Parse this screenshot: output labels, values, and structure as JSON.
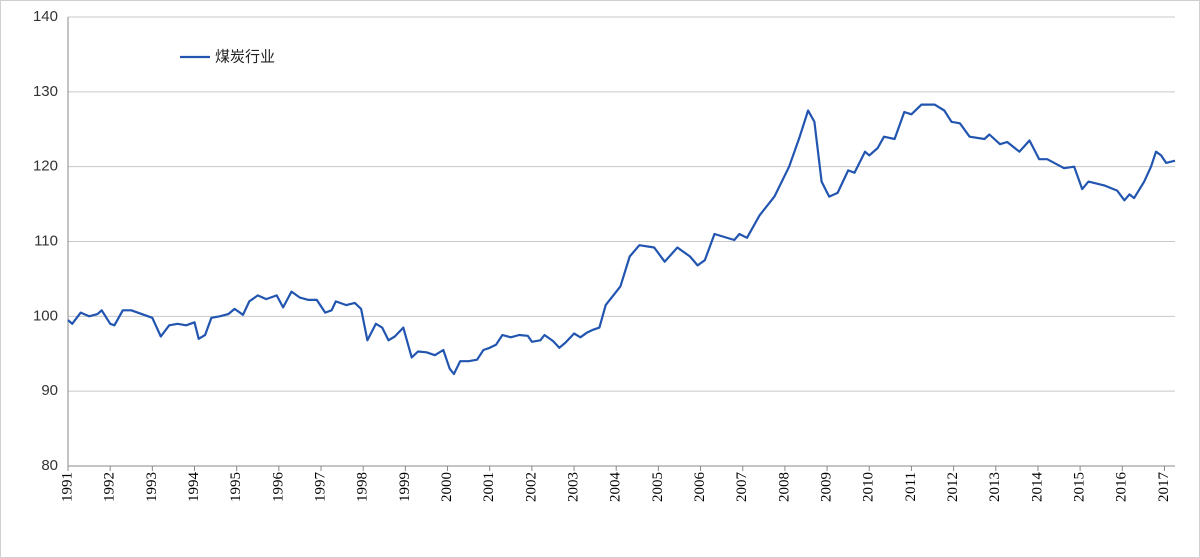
{
  "chart_data": {
    "type": "line",
    "x": [
      1991.0,
      1991.1,
      1991.3,
      1991.5,
      1991.7,
      1991.8,
      1992.0,
      1992.1,
      1992.3,
      1992.5,
      1992.8,
      1993.0,
      1993.2,
      1993.4,
      1993.6,
      1993.8,
      1994.0,
      1994.1,
      1994.25,
      1994.4,
      1994.6,
      1994.8,
      1994.95,
      1995.15,
      1995.3,
      1995.5,
      1995.7,
      1995.95,
      1996.1,
      1996.3,
      1996.5,
      1996.7,
      1996.9,
      1997.1,
      1997.25,
      1997.35,
      1997.6,
      1997.8,
      1997.95,
      1998.1,
      1998.3,
      1998.45,
      1998.6,
      1998.75,
      1998.95,
      1999.15,
      1999.3,
      1999.5,
      1999.7,
      1999.9,
      2000.05,
      2000.15,
      2000.3,
      2000.5,
      2000.7,
      2000.85,
      2001.0,
      2001.15,
      2001.3,
      2001.5,
      2001.7,
      2001.9,
      2002.0,
      2002.2,
      2002.3,
      2002.5,
      2002.65,
      2002.8,
      2003.0,
      2003.15,
      2003.3,
      2003.45,
      2003.6,
      2003.75,
      2004.1,
      2004.32,
      2004.55,
      2004.9,
      2005.15,
      2005.45,
      2005.75,
      2005.93,
      2006.1,
      2006.33,
      2006.8,
      2006.92,
      2007.1,
      2007.4,
      2007.75,
      2008.1,
      2008.35,
      2008.55,
      2008.7,
      2008.87,
      2009.05,
      2009.25,
      2009.5,
      2009.65,
      2009.9,
      2010.0,
      2010.2,
      2010.35,
      2010.6,
      2010.83,
      2011.0,
      2011.24,
      2011.55,
      2011.78,
      2011.95,
      2012.15,
      2012.38,
      2012.73,
      2012.85,
      2013.1,
      2013.27,
      2013.56,
      2013.8,
      2014.03,
      2014.22,
      2014.62,
      2014.86,
      2015.05,
      2015.2,
      2015.57,
      2015.88,
      2016.05,
      2016.17,
      2016.28,
      2016.52,
      2016.68,
      2016.8,
      2016.92,
      2017.04,
      2017.25
    ],
    "series": [
      {
        "name": "煤炭行业",
        "color": "#2255b0",
        "values": [
          99.5,
          99.0,
          100.5,
          100.0,
          100.3,
          100.8,
          99.0,
          98.8,
          100.8,
          100.8,
          100.2,
          99.8,
          97.3,
          98.8,
          99.0,
          98.8,
          99.2,
          97.0,
          97.5,
          99.8,
          100.0,
          100.3,
          101.0,
          100.2,
          102.0,
          102.8,
          102.3,
          102.8,
          101.2,
          103.3,
          102.5,
          102.2,
          102.2,
          100.5,
          100.8,
          102.0,
          101.5,
          101.8,
          101.0,
          96.8,
          99.0,
          98.5,
          96.8,
          97.3,
          98.5,
          94.5,
          95.3,
          95.2,
          94.8,
          95.5,
          93.0,
          92.3,
          94.0,
          94.0,
          94.2,
          95.5,
          95.8,
          96.2,
          97.5,
          97.2,
          97.5,
          97.4,
          96.6,
          96.8,
          97.5,
          96.7,
          95.8,
          96.5,
          97.7,
          97.2,
          97.8,
          98.2,
          98.5,
          101.5,
          104.0,
          108.0,
          109.5,
          109.2,
          107.3,
          109.2,
          108.0,
          106.8,
          107.5,
          111.0,
          110.2,
          111.0,
          110.5,
          113.5,
          116.0,
          120.0,
          124.0,
          127.5,
          126.0,
          118.0,
          116.0,
          116.5,
          119.5,
          119.2,
          122.0,
          121.5,
          122.5,
          124.0,
          123.7,
          127.3,
          127.0,
          128.3,
          128.3,
          127.5,
          126.0,
          125.8,
          124.0,
          123.7,
          124.3,
          123.0,
          123.3,
          122.0,
          123.5,
          121.0,
          121.0,
          119.8,
          120.0,
          117.0,
          118.0,
          117.5,
          116.8,
          115.5,
          116.3,
          115.8,
          118.0,
          120.0,
          122.0,
          121.5,
          120.5,
          120.8
        ]
      }
    ],
    "xlim": [
      1991,
      2017.25
    ],
    "xticks": [
      1991,
      1992,
      1993,
      1994,
      1995,
      1996,
      1997,
      1998,
      1999,
      2000,
      2001,
      2002,
      2003,
      2004,
      2005,
      2006,
      2007,
      2008,
      2009,
      2010,
      2011,
      2012,
      2013,
      2014,
      2015,
      2016,
      2017
    ],
    "ylim": [
      80,
      140
    ],
    "yticks": [
      80,
      90,
      100,
      110,
      120,
      130,
      140
    ],
    "grid": true
  }
}
